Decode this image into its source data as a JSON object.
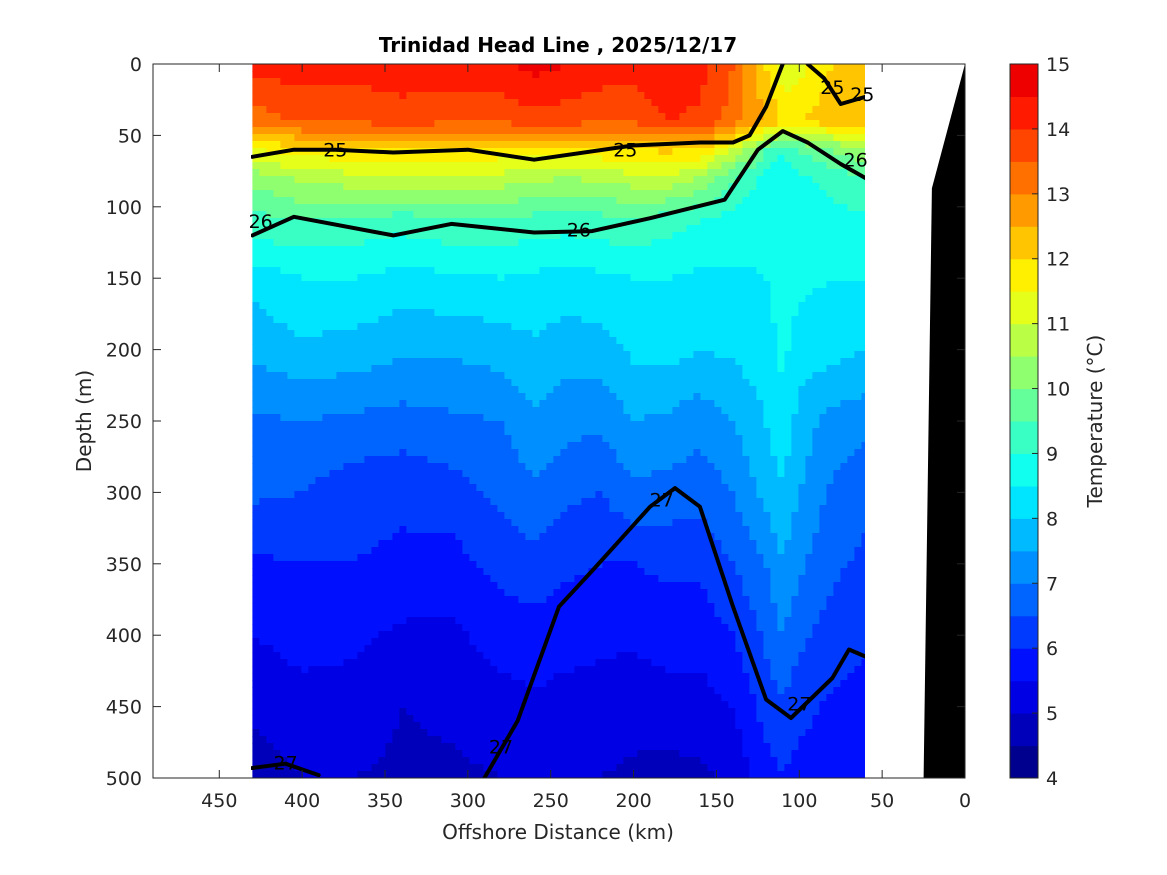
{
  "chart_data": {
    "type": "heatmap",
    "subtype": "filled-contour-section",
    "title": "Trinidad Head Line , 2025/12/17",
    "xlabel": "Offshore Distance (km)",
    "ylabel": "Depth (m)",
    "xlim": [
      490,
      0
    ],
    "x_direction": "reversed",
    "ylim": [
      0,
      500
    ],
    "y_direction": "reversed",
    "x_ticks": [
      450,
      400,
      350,
      300,
      250,
      200,
      150,
      100,
      50,
      0
    ],
    "y_ticks": [
      0,
      50,
      100,
      150,
      200,
      250,
      300,
      350,
      400,
      450,
      500
    ],
    "data_extent_x": [
      430,
      60
    ],
    "colorbar": {
      "label": "Temperature (°C)",
      "range": [
        4,
        15
      ],
      "ticks": [
        4,
        5,
        6,
        7,
        8,
        9,
        10,
        11,
        12,
        13,
        14,
        15
      ],
      "level_step": 0.5,
      "colormap": "jet",
      "colors": [
        "#00008f",
        "#0000ba",
        "#0000e5",
        "#0010ff",
        "#003aff",
        "#0064ff",
        "#008fff",
        "#00baff",
        "#00e5ff",
        "#10ffef",
        "#3affc5",
        "#64ff9b",
        "#8fff70",
        "#baff45",
        "#e5ff1a",
        "#fff000",
        "#ffc500",
        "#ff9b00",
        "#ff7000",
        "#ff4500",
        "#ff1a00",
        "#ef0000",
        "#c50000"
      ]
    },
    "stations_x_km": [
      430,
      400,
      370,
      340,
      310,
      280,
      260,
      240,
      220,
      200,
      180,
      160,
      140,
      120,
      110,
      100,
      80,
      60
    ],
    "depth_levels_m": [
      0,
      40,
      60,
      80,
      110,
      150,
      200,
      250,
      300,
      350,
      400,
      450,
      500
    ],
    "temperature_grid": [
      [
        14.2,
        14.3,
        14.2,
        14.4,
        14.3,
        14.4,
        14.7,
        14.5,
        14.3,
        14.2,
        14.4,
        14.2,
        13.5,
        12.0,
        11.0,
        11.3,
        12.0,
        12.5
      ],
      [
        13.2,
        13.6,
        13.6,
        13.7,
        13.6,
        13.6,
        13.8,
        13.7,
        13.6,
        13.6,
        14.0,
        13.9,
        13.3,
        12.5,
        12.0,
        12.0,
        12.3,
        12.5
      ],
      [
        11.5,
        11.8,
        11.9,
        12.0,
        12.0,
        11.8,
        11.7,
        11.7,
        11.9,
        12.0,
        12.1,
        12.0,
        11.0,
        9.5,
        9.0,
        9.5,
        10.0,
        10.5
      ],
      [
        10.2,
        10.6,
        10.8,
        10.9,
        10.9,
        10.8,
        10.6,
        10.5,
        10.6,
        10.8,
        10.9,
        10.5,
        9.5,
        8.8,
        8.7,
        8.9,
        9.2,
        9.5
      ],
      [
        9.3,
        9.5,
        9.4,
        9.2,
        9.4,
        9.4,
        9.3,
        9.2,
        9.3,
        9.4,
        9.2,
        9.0,
        8.8,
        8.7,
        8.6,
        8.7,
        8.8,
        8.9
      ],
      [
        8.2,
        8.5,
        8.5,
        8.3,
        8.4,
        8.5,
        8.4,
        8.3,
        8.4,
        8.5,
        8.5,
        8.4,
        8.4,
        8.5,
        8.7,
        8.6,
        8.5,
        8.5
      ],
      [
        7.6,
        7.9,
        7.8,
        7.6,
        7.6,
        7.7,
        7.9,
        7.7,
        7.8,
        8.1,
        8.2,
        8.0,
        8.1,
        8.3,
        8.6,
        8.3,
        8.2,
        8.0
      ],
      [
        6.9,
        7.0,
        6.9,
        6.8,
        6.9,
        7.0,
        7.4,
        7.2,
        7.1,
        7.5,
        7.4,
        7.2,
        7.5,
        8.0,
        8.4,
        7.8,
        7.3,
        7.2
      ],
      [
        6.6,
        6.5,
        6.2,
        6.1,
        6.3,
        6.6,
        6.9,
        6.6,
        6.5,
        6.9,
        6.8,
        6.7,
        7.0,
        7.7,
        7.9,
        7.5,
        6.9,
        6.6
      ],
      [
        5.9,
        6.0,
        6.0,
        5.9,
        5.8,
        6.2,
        6.3,
        6.1,
        6.0,
        6.0,
        6.1,
        6.1,
        6.5,
        7.0,
        7.5,
        7.1,
        6.6,
        6.4
      ],
      [
        5.5,
        5.7,
        5.6,
        5.4,
        5.4,
        5.7,
        5.8,
        5.7,
        5.6,
        5.6,
        5.7,
        5.7,
        6.0,
        6.6,
        7.0,
        6.6,
        6.3,
        6.1
      ],
      [
        5.1,
        5.3,
        5.3,
        5.0,
        5.1,
        5.3,
        5.4,
        5.3,
        5.3,
        5.2,
        5.3,
        5.3,
        5.5,
        6.2,
        6.4,
        6.2,
        5.9,
        5.8
      ],
      [
        4.7,
        5.0,
        5.0,
        4.9,
        4.9,
        5.0,
        5.1,
        5.1,
        5.0,
        4.9,
        4.8,
        4.9,
        5.1,
        5.8,
        6.0,
        5.8,
        5.6,
        5.5
      ]
    ],
    "density_contours": [
      {
        "label": "25",
        "points": [
          [
            430,
            65
          ],
          [
            405,
            60
          ],
          [
            380,
            60
          ],
          [
            345,
            62
          ],
          [
            300,
            60
          ],
          [
            260,
            67
          ],
          [
            200,
            57
          ],
          [
            160,
            55
          ],
          [
            140,
            55
          ],
          [
            130,
            50
          ],
          [
            120,
            30
          ],
          [
            110,
            0
          ]
        ]
      },
      {
        "label": "25",
        "points": [
          [
            95,
            0
          ],
          [
            85,
            10
          ],
          [
            75,
            28
          ],
          [
            60,
            23
          ]
        ]
      },
      {
        "label": "26",
        "points": [
          [
            430,
            120
          ],
          [
            405,
            107
          ],
          [
            345,
            120
          ],
          [
            310,
            112
          ],
          [
            260,
            118
          ],
          [
            225,
            117
          ],
          [
            190,
            108
          ],
          [
            145,
            95
          ],
          [
            125,
            60
          ],
          [
            110,
            47
          ],
          [
            95,
            55
          ],
          [
            75,
            70
          ],
          [
            60,
            80
          ]
        ]
      },
      {
        "label": "27",
        "points": [
          [
            290,
            500
          ],
          [
            270,
            460
          ],
          [
            245,
            380
          ],
          [
            225,
            355
          ],
          [
            190,
            310
          ],
          [
            175,
            297
          ],
          [
            160,
            310
          ],
          [
            140,
            380
          ],
          [
            120,
            445
          ],
          [
            105,
            458
          ],
          [
            80,
            430
          ],
          [
            70,
            410
          ],
          [
            60,
            415
          ]
        ]
      },
      {
        "label": "27",
        "points": [
          [
            430,
            493
          ],
          [
            410,
            490
          ],
          [
            390,
            498
          ]
        ]
      }
    ],
    "contour_labels": [
      {
        "text": "25",
        "x": 380,
        "y": 60
      },
      {
        "text": "25",
        "x": 205,
        "y": 60
      },
      {
        "text": "25",
        "x": 80,
        "y": 16
      },
      {
        "text": "25",
        "x": 62,
        "y": 21
      },
      {
        "text": "26",
        "x": 425,
        "y": 110
      },
      {
        "text": "26",
        "x": 233,
        "y": 116
      },
      {
        "text": "26",
        "x": 66,
        "y": 67
      },
      {
        "text": "27",
        "x": 183,
        "y": 305
      },
      {
        "text": "27",
        "x": 280,
        "y": 478
      },
      {
        "text": "27",
        "x": 100,
        "y": 448
      },
      {
        "text": "27",
        "x": 410,
        "y": 489
      }
    ],
    "bathymetry": [
      [
        25,
        500
      ],
      [
        20,
        87
      ],
      [
        0,
        0
      ],
      [
        0,
        500
      ]
    ]
  }
}
